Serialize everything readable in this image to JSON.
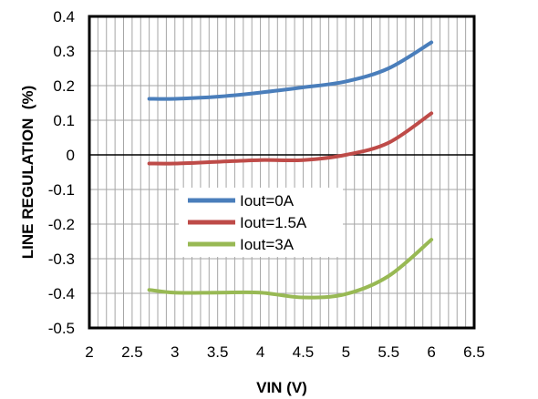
{
  "chart_data": {
    "type": "line",
    "title": "",
    "xlabel": "VIN (V)",
    "ylabel": "LINE REGULATION  (%)",
    "xlim": [
      2,
      6.5
    ],
    "ylim": [
      -0.5,
      0.4
    ],
    "x_ticks": [
      "2",
      "2.5",
      "3",
      "3.5",
      "4",
      "4.5",
      "5",
      "5.5",
      "6",
      "6.5"
    ],
    "y_ticks": [
      "0.4",
      "0.3",
      "0.2",
      "0.1",
      "0",
      "-0.1",
      "-0.2",
      "-0.3",
      "-0.4",
      "-0.5"
    ],
    "grid": true,
    "legend_position": "center-left",
    "series": [
      {
        "name": "Iout=0A",
        "color": "#4a7ebb",
        "x": [
          2.7,
          3.0,
          3.5,
          4.0,
          4.5,
          5.0,
          5.5,
          6.0
        ],
        "y": [
          0.162,
          0.162,
          0.168,
          0.18,
          0.195,
          0.212,
          0.25,
          0.325
        ]
      },
      {
        "name": "Iout=1.5A",
        "color": "#be4b48",
        "x": [
          2.7,
          3.0,
          3.5,
          4.0,
          4.5,
          5.0,
          5.5,
          6.0
        ],
        "y": [
          -0.025,
          -0.025,
          -0.02,
          -0.015,
          -0.015,
          0.0,
          0.035,
          0.12
        ]
      },
      {
        "name": "Iout=3A",
        "color": "#98b954",
        "x": [
          2.7,
          3.0,
          3.5,
          4.0,
          4.5,
          5.0,
          5.5,
          6.0
        ],
        "y": [
          -0.39,
          -0.398,
          -0.398,
          -0.398,
          -0.412,
          -0.402,
          -0.35,
          -0.245
        ]
      }
    ]
  }
}
